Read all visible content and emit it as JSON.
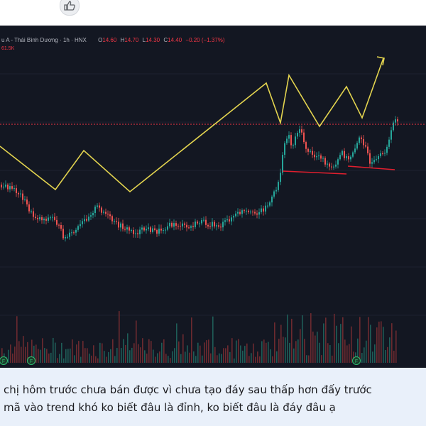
{
  "chart": {
    "symbol_title": "u A - Thái Bình Dương · 1h · HNX",
    "ohlc": [
      {
        "k": "O",
        "v": "14.60"
      },
      {
        "k": "H",
        "v": "14.70"
      },
      {
        "k": "L",
        "v": "14.30"
      },
      {
        "k": "C",
        "v": "14.40"
      }
    ],
    "change": "−0.20 (−1.37%)",
    "volume_label": "61.5K",
    "event_marker": "F",
    "colors": {
      "background": "#131722",
      "up": "#26a69a",
      "down": "#ef5350",
      "annotation": "#e3d44f",
      "support_line": "#e01f2e",
      "price_line": "#f23645"
    }
  },
  "comment": {
    "line1": "chị hôm trước  chưa bán được vì chưa tạo đáy sau thấp hơn đấy trước",
    "line2": "mã vào trend khó ko biết đâu là đỉnh, ko biết đâu là đáy đâu ạ"
  },
  "toolbar": {
    "like_icon": "thumbs-up-icon"
  }
}
